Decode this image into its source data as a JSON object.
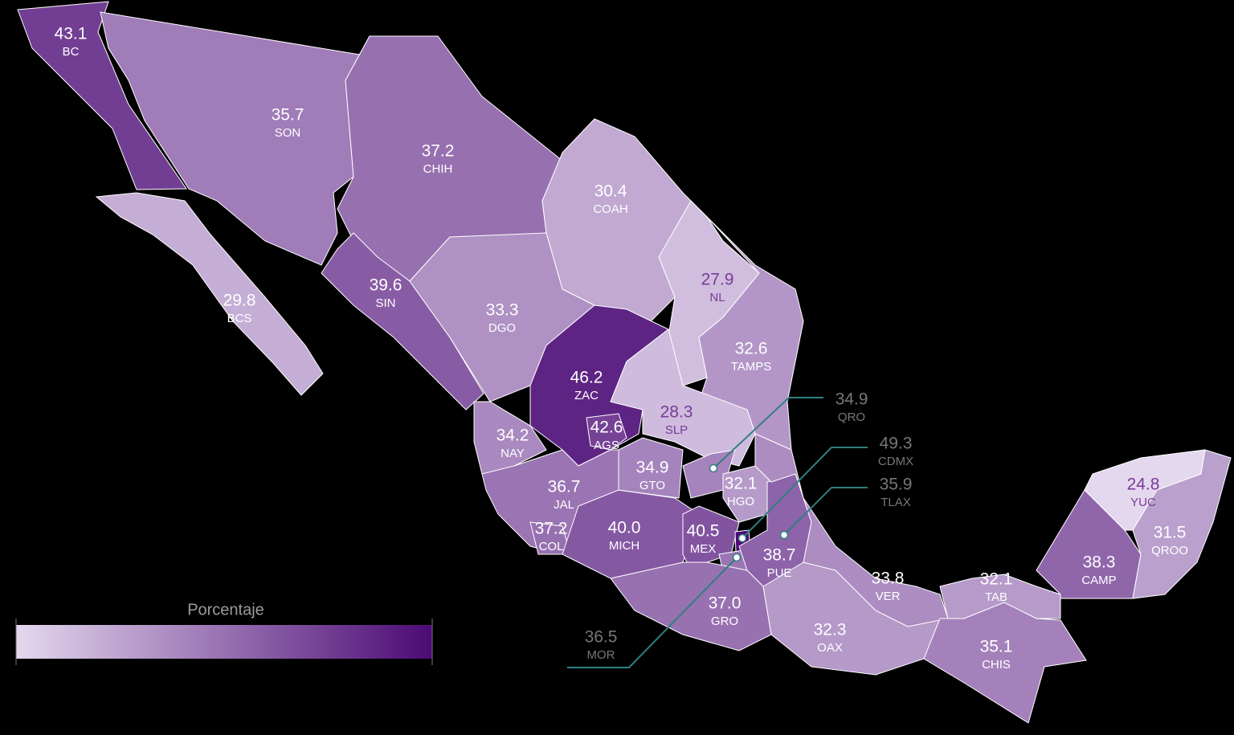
{
  "map": {
    "legend_title": "Porcentaje",
    "colorscale": [
      "#e4d8ee",
      "#4b0a74"
    ],
    "states": [
      {
        "abbr": "BC",
        "value": 43.1
      },
      {
        "abbr": "BCS",
        "value": 29.8
      },
      {
        "abbr": "SON",
        "value": 35.7
      },
      {
        "abbr": "CHIH",
        "value": 37.2
      },
      {
        "abbr": "COAH",
        "value": 30.4
      },
      {
        "abbr": "NL",
        "value": 27.9
      },
      {
        "abbr": "TAMPS",
        "value": 32.6
      },
      {
        "abbr": "SIN",
        "value": 39.6
      },
      {
        "abbr": "DGO",
        "value": 33.3
      },
      {
        "abbr": "ZAC",
        "value": 46.2
      },
      {
        "abbr": "SLP",
        "value": 28.3
      },
      {
        "abbr": "NAY",
        "value": 34.2
      },
      {
        "abbr": "AGS",
        "value": 42.6
      },
      {
        "abbr": "JAL",
        "value": 36.7
      },
      {
        "abbr": "COL",
        "value": 37.2
      },
      {
        "abbr": "MICH",
        "value": 40.0,
        "value_label": "40.0"
      },
      {
        "abbr": "GTO",
        "value": 34.9
      },
      {
        "abbr": "QRO",
        "value": 34.9
      },
      {
        "abbr": "HGO",
        "value": 32.1
      },
      {
        "abbr": "MEX",
        "value": 40.5
      },
      {
        "abbr": "CDMX",
        "value": 49.3
      },
      {
        "abbr": "TLAX",
        "value": 35.9
      },
      {
        "abbr": "MOR",
        "value": 36.5
      },
      {
        "abbr": "PUE",
        "value": 38.7
      },
      {
        "abbr": "GRO",
        "value": 37.0,
        "value_label": "37.0"
      },
      {
        "abbr": "OAX",
        "value": 32.3
      },
      {
        "abbr": "VER",
        "value": 33.8
      },
      {
        "abbr": "TAB",
        "value": 32.1
      },
      {
        "abbr": "CHIS",
        "value": 35.1
      },
      {
        "abbr": "CAMP",
        "value": 38.3
      },
      {
        "abbr": "YUC",
        "value": 24.8
      },
      {
        "abbr": "QROO",
        "value": 31.5
      }
    ]
  }
}
